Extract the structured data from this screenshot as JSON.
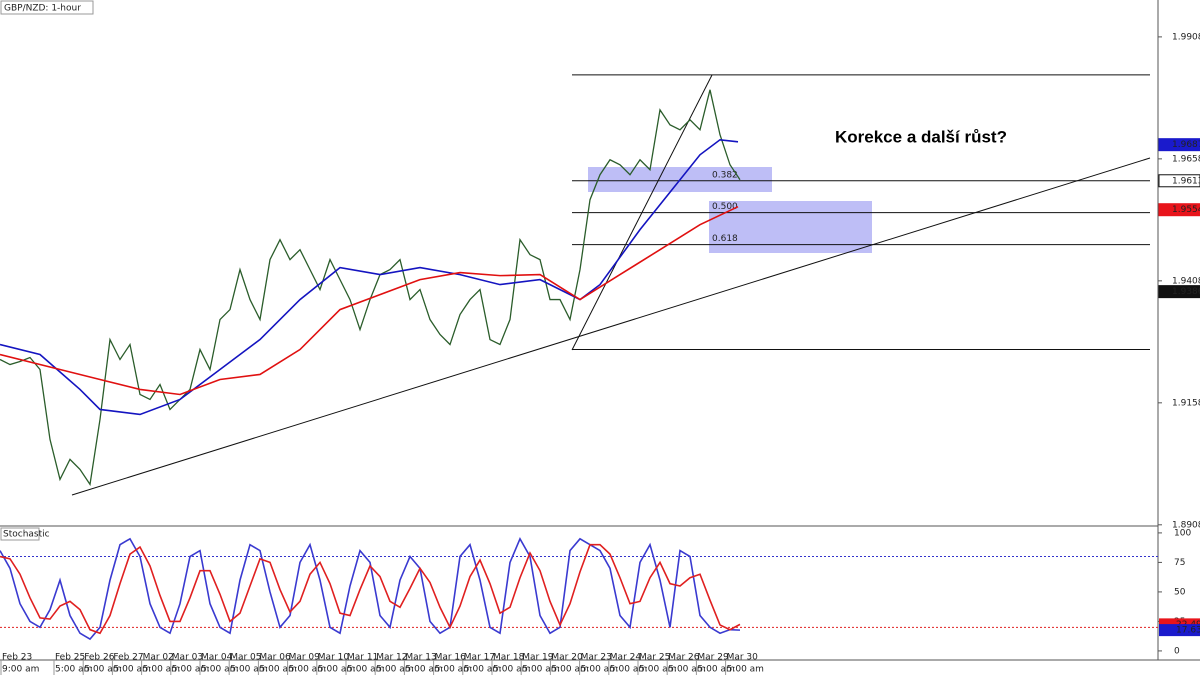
{
  "chart_data": {
    "type": "line",
    "title": "GBP/NZD: 1-hour",
    "annotation": "Korekce a další růst?",
    "ylim": [
      1.8908,
      1.9984
    ],
    "yticks": [
      1.89084,
      1.91584,
      1.94084,
      1.96584,
      1.99084
    ],
    "series": [
      {
        "color": "#2b5d2b",
        "values": [
          1.92472,
          1.92369,
          1.92431,
          1.92513,
          1.92267,
          1.90834,
          1.90015,
          1.90425,
          1.9022,
          1.89913,
          1.91244,
          1.92881,
          1.92472,
          1.92779,
          1.91755,
          1.91653,
          1.9196,
          1.91448,
          1.91653,
          1.91858,
          1.92676,
          1.92267,
          1.93291,
          1.93495,
          1.94314,
          1.937,
          1.93291,
          1.94519,
          1.94928,
          1.94519,
          1.94723,
          1.94314,
          1.93905,
          1.94519,
          1.94109,
          1.937,
          1.93086,
          1.937,
          1.94212,
          1.94314,
          1.94519,
          1.937,
          1.93905,
          1.93291,
          1.92984,
          1.92779,
          1.93393,
          1.937,
          1.93905,
          1.92881,
          1.92779,
          1.93291,
          1.94928,
          1.94621,
          1.94519,
          1.937,
          1.937,
          1.93291,
          1.94314,
          1.95747,
          1.96259,
          1.96566,
          1.96463,
          1.96259,
          1.96566,
          1.96361,
          1.97589,
          1.97282,
          1.9718,
          1.97385,
          1.9718,
          1.97999,
          1.97078,
          1.96463,
          1.96156
        ]
      },
      {
        "color": "#1414c0",
        "x": [
          0,
          4,
          8,
          10,
          14,
          18,
          22,
          26,
          30,
          34,
          38,
          42,
          46,
          50,
          54,
          58,
          60,
          64,
          68,
          70,
          72,
          73.8
        ],
        "values": [
          1.92779,
          1.92574,
          1.91858,
          1.91448,
          1.91346,
          1.91653,
          1.92267,
          1.92881,
          1.937,
          1.94355,
          1.94212,
          1.94355,
          1.94212,
          1.94007,
          1.94109,
          1.937,
          1.94007,
          1.95133,
          1.96156,
          1.96668,
          1.96975,
          1.96934
        ]
      },
      {
        "color": "#e01010",
        "x": [
          0,
          6,
          10,
          14,
          18,
          22,
          26,
          30,
          34,
          38,
          42,
          46,
          50,
          54,
          58,
          62,
          66,
          70,
          73.8
        ],
        "values": [
          1.92574,
          1.92267,
          1.92062,
          1.91858,
          1.91755,
          1.92062,
          1.92165,
          1.92676,
          1.93495,
          1.93802,
          1.94109,
          1.94253,
          1.94191,
          1.94212,
          1.937,
          1.94212,
          1.94723,
          1.95235,
          1.95604
        ]
      }
    ],
    "price_markers": {
      "values": [
        1.96875,
        1.96135,
        1.95542,
        1.93863
      ],
      "colors": [
        "#1a1acc",
        "#ffffff",
        "#e8141b",
        "#111111"
      ]
    },
    "fib": {
      "levels": [
        1.98306,
        1.96135,
        1.95482,
        1.94827,
        1.92678
      ],
      "labels": [
        null,
        "0.382",
        "0.500",
        "0.618",
        null
      ]
    },
    "xticks": {
      "dates": [
        "Feb 23",
        "Feb 25",
        "Feb 26",
        "Feb 27",
        "Mar 02",
        "Mar 03",
        "Mar 04",
        "Mar 05",
        "Mar 06",
        "Mar 09",
        "Mar 10",
        "Mar 11",
        "Mar 12",
        "Mar 13",
        "Mar 16",
        "Mar 17",
        "Mar 18",
        "Mar 19",
        "Mar 20",
        "Mar 23",
        "Mar 24",
        "Mar 25",
        "Mar 26",
        "Mar 29",
        "Mar 30"
      ],
      "times": [
        "9:00 am",
        "5:00 am",
        "5:00 am",
        "5:00 am",
        "5:00 am",
        "5:00 am",
        "5:00 am",
        "5:00 am",
        "5:00 am",
        "5:00 am",
        "5:00 am",
        "5:00 am",
        "5:00 am",
        "5:00 am",
        "5:00 am",
        "5:00 am",
        "5:00 am",
        "5:00 am",
        "5:00 am",
        "5:00 am",
        "5:00 am",
        "5:00 am",
        "5:00 am",
        "5:00 am",
        "5:00 am"
      ]
    },
    "stochastic": {
      "type": "line",
      "title": "Stochastic",
      "ylim": [
        -6,
        105
      ],
      "yticks": [
        0,
        25,
        50,
        75,
        100
      ],
      "levels": {
        "values": [
          80,
          20
        ],
        "colors": [
          "#3333cc",
          "#e02020"
        ]
      },
      "series": [
        {
          "color": "#3a3ad0",
          "values": [
            85,
            70,
            40,
            25,
            20,
            35,
            60,
            30,
            15,
            10,
            20,
            60,
            90,
            95,
            80,
            40,
            20,
            15,
            40,
            80,
            85,
            40,
            20,
            15,
            60,
            90,
            85,
            50,
            20,
            30,
            75,
            90,
            60,
            20,
            15,
            55,
            85,
            75,
            30,
            20,
            60,
            80,
            70,
            25,
            15,
            20,
            80,
            90,
            60,
            20,
            15,
            75,
            95,
            80,
            30,
            15,
            20,
            85,
            95,
            90,
            85,
            70,
            30,
            20,
            75,
            90,
            60,
            20,
            85,
            80,
            30,
            20,
            15,
            18,
            17.63
          ]
        },
        {
          "color": "#e02020",
          "values": [
            80,
            78,
            65,
            45,
            28,
            27,
            38,
            42,
            35,
            18,
            15,
            30,
            57,
            82,
            88,
            72,
            47,
            25,
            25,
            45,
            68,
            68,
            48,
            25,
            32,
            55,
            78,
            75,
            52,
            33,
            42,
            65,
            75,
            57,
            32,
            30,
            52,
            72,
            63,
            42,
            37,
            53,
            70,
            58,
            37,
            20,
            38,
            63,
            77,
            57,
            32,
            37,
            62,
            83,
            68,
            42,
            22,
            40,
            67,
            90,
            90,
            82,
            62,
            40,
            42,
            62,
            75,
            57,
            55,
            62,
            65,
            43,
            22,
            18,
            22.49
          ]
        }
      ],
      "markers": {
        "values": [
          22.49,
          17.63
        ],
        "colors": [
          "#e8141b",
          "#1a1acc"
        ]
      }
    }
  }
}
